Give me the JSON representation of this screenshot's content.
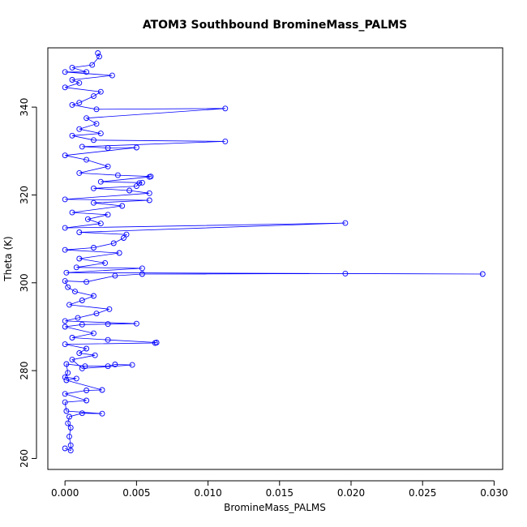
{
  "chart_data": {
    "type": "line",
    "title": "ATOM3 Southbound BromineMass_PALMS",
    "xlabel": "BromineMass_PALMS",
    "ylabel": "Theta (K)",
    "xlim": [
      -0.0012,
      0.0306
    ],
    "ylim": [
      257.5,
      353.5
    ],
    "x_ticks": [
      0.0,
      0.005,
      0.01,
      0.015,
      0.02,
      0.025,
      0.03
    ],
    "x_tick_labels": [
      "0.000",
      "0.005",
      "0.010",
      "0.015",
      "0.020",
      "0.025",
      "0.030"
    ],
    "y_ticks": [
      260,
      280,
      300,
      320,
      340
    ],
    "y_tick_labels": [
      "260",
      "280",
      "300",
      "320",
      "340"
    ],
    "grid": false,
    "series": [
      {
        "color": "#0000ff",
        "marker": "open-circle",
        "points": [
          [
            0.0,
            262.3
          ],
          [
            0.0004,
            261.8
          ],
          [
            0.0004,
            263.0
          ],
          [
            0.0003,
            265.0
          ],
          [
            0.0004,
            267.0
          ],
          [
            0.0002,
            268.0
          ],
          [
            0.0003,
            269.5
          ],
          [
            0.0012,
            270.3
          ],
          [
            0.0026,
            270.2
          ],
          [
            0.0001,
            270.8
          ],
          [
            0.0,
            272.8
          ],
          [
            0.0015,
            273.2
          ],
          [
            0.0,
            274.7
          ],
          [
            0.0015,
            275.5
          ],
          [
            0.0026,
            275.6
          ],
          [
            0.0001,
            277.8
          ],
          [
            0.0008,
            278.2
          ],
          [
            0.0,
            278.5
          ],
          [
            0.0002,
            279.5
          ],
          [
            0.0001,
            281.5
          ],
          [
            0.0014,
            281.0
          ],
          [
            0.003,
            281.0
          ],
          [
            0.0035,
            281.4
          ],
          [
            0.0047,
            281.3
          ],
          [
            0.0012,
            280.5
          ],
          [
            0.0005,
            282.5
          ],
          [
            0.0021,
            283.5
          ],
          [
            0.001,
            284.0
          ],
          [
            0.0015,
            285.0
          ],
          [
            0.0,
            286.0
          ],
          [
            0.0063,
            286.3
          ],
          [
            0.0064,
            286.4
          ],
          [
            0.003,
            287.0
          ],
          [
            0.0005,
            287.5
          ],
          [
            0.002,
            288.5
          ],
          [
            0.0,
            290.0
          ],
          [
            0.0012,
            290.5
          ],
          [
            0.003,
            290.6
          ],
          [
            0.005,
            290.7
          ],
          [
            0.0,
            291.3
          ],
          [
            0.0009,
            292.0
          ],
          [
            0.0022,
            293.0
          ],
          [
            0.0031,
            294.0
          ],
          [
            0.0003,
            295.0
          ],
          [
            0.0012,
            296.0
          ],
          [
            0.002,
            297.0
          ],
          [
            0.0007,
            298.0
          ],
          [
            0.0002,
            299.0
          ],
          [
            0.0,
            300.4
          ],
          [
            0.0015,
            300.2
          ],
          [
            0.0035,
            301.6
          ],
          [
            0.0054,
            302.0
          ],
          [
            0.0196,
            302.1
          ],
          [
            0.0292,
            302.0
          ],
          [
            0.0001,
            302.3
          ],
          [
            0.0054,
            303.3
          ],
          [
            0.0008,
            303.5
          ],
          [
            0.0028,
            304.5
          ],
          [
            0.001,
            305.5
          ],
          [
            0.0038,
            306.8
          ],
          [
            0.0,
            307.5
          ],
          [
            0.002,
            308.0
          ],
          [
            0.0034,
            309.0
          ],
          [
            0.0041,
            310.2
          ],
          [
            0.0043,
            311.0
          ],
          [
            0.001,
            311.5
          ],
          [
            0.0196,
            313.6
          ],
          [
            0.0,
            312.5
          ],
          [
            0.0025,
            313.5
          ],
          [
            0.0016,
            314.5
          ],
          [
            0.003,
            315.5
          ],
          [
            0.0005,
            316.0
          ],
          [
            0.004,
            317.5
          ],
          [
            0.002,
            318.2
          ],
          [
            0.0059,
            318.8
          ],
          [
            0.0,
            319.0
          ],
          [
            0.0059,
            320.4
          ],
          [
            0.0045,
            321.0
          ],
          [
            0.002,
            321.5
          ],
          [
            0.005,
            322.0
          ],
          [
            0.0052,
            322.7
          ],
          [
            0.0054,
            322.8
          ],
          [
            0.0025,
            323.0
          ],
          [
            0.0059,
            324.1
          ],
          [
            0.006,
            324.2
          ],
          [
            0.0037,
            324.5
          ],
          [
            0.001,
            325.0
          ],
          [
            0.003,
            326.5
          ],
          [
            0.0015,
            328.0
          ],
          [
            0.0,
            329.0
          ],
          [
            0.005,
            330.8
          ],
          [
            0.003,
            330.7
          ],
          [
            0.0012,
            331.0
          ],
          [
            0.0112,
            332.2
          ],
          [
            0.002,
            332.5
          ],
          [
            0.0005,
            333.5
          ],
          [
            0.0025,
            334.0
          ],
          [
            0.001,
            335.0
          ],
          [
            0.0022,
            336.2
          ],
          [
            0.0015,
            337.5
          ],
          [
            0.0112,
            339.7
          ],
          [
            0.0022,
            339.5
          ],
          [
            0.0005,
            340.5
          ],
          [
            0.001,
            341.0
          ],
          [
            0.002,
            342.5
          ],
          [
            0.0025,
            343.5
          ],
          [
            0.0,
            344.5
          ],
          [
            0.001,
            345.5
          ],
          [
            0.0005,
            346.2
          ],
          [
            0.0033,
            347.2
          ],
          [
            0.0,
            348.0
          ],
          [
            0.0015,
            348.0
          ],
          [
            0.0005,
            349.0
          ],
          [
            0.0019,
            349.6
          ],
          [
            0.0024,
            351.5
          ],
          [
            0.0023,
            352.3
          ]
        ]
      }
    ]
  }
}
